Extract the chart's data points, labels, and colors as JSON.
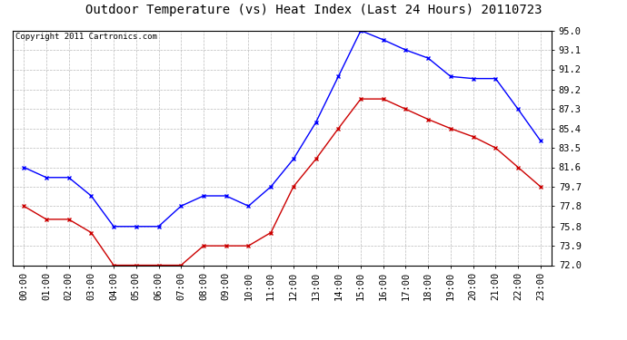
{
  "title": "Outdoor Temperature (vs) Heat Index (Last 24 Hours) 20110723",
  "copyright": "Copyright 2011 Cartronics.com",
  "x_labels": [
    "00:00",
    "01:00",
    "02:00",
    "03:00",
    "04:00",
    "05:00",
    "06:00",
    "07:00",
    "08:00",
    "09:00",
    "10:00",
    "11:00",
    "12:00",
    "13:00",
    "14:00",
    "15:00",
    "16:00",
    "17:00",
    "18:00",
    "19:00",
    "20:00",
    "21:00",
    "22:00",
    "23:00"
  ],
  "blue_data": [
    81.6,
    80.6,
    80.6,
    78.8,
    75.8,
    75.8,
    75.8,
    77.8,
    78.8,
    78.8,
    77.8,
    79.7,
    82.4,
    86.0,
    90.5,
    95.0,
    94.1,
    93.1,
    92.3,
    90.5,
    90.3,
    90.3,
    87.3,
    84.2
  ],
  "red_data": [
    77.8,
    76.5,
    76.5,
    75.2,
    72.0,
    72.0,
    72.0,
    72.0,
    73.9,
    73.9,
    73.9,
    75.2,
    79.7,
    82.4,
    85.4,
    88.3,
    88.3,
    87.3,
    86.3,
    85.4,
    84.6,
    83.5,
    81.6,
    79.7
  ],
  "blue_color": "#0000FF",
  "red_color": "#CC0000",
  "bg_color": "#FFFFFF",
  "grid_color": "#BBBBBB",
  "y_ticks": [
    72.0,
    73.9,
    75.8,
    77.8,
    79.7,
    81.6,
    83.5,
    85.4,
    87.3,
    89.2,
    91.2,
    93.1,
    95.0
  ],
  "ylim_min": 72.0,
  "ylim_max": 95.0,
  "title_fontsize": 10,
  "copyright_fontsize": 6.5,
  "tick_fontsize": 7.5
}
